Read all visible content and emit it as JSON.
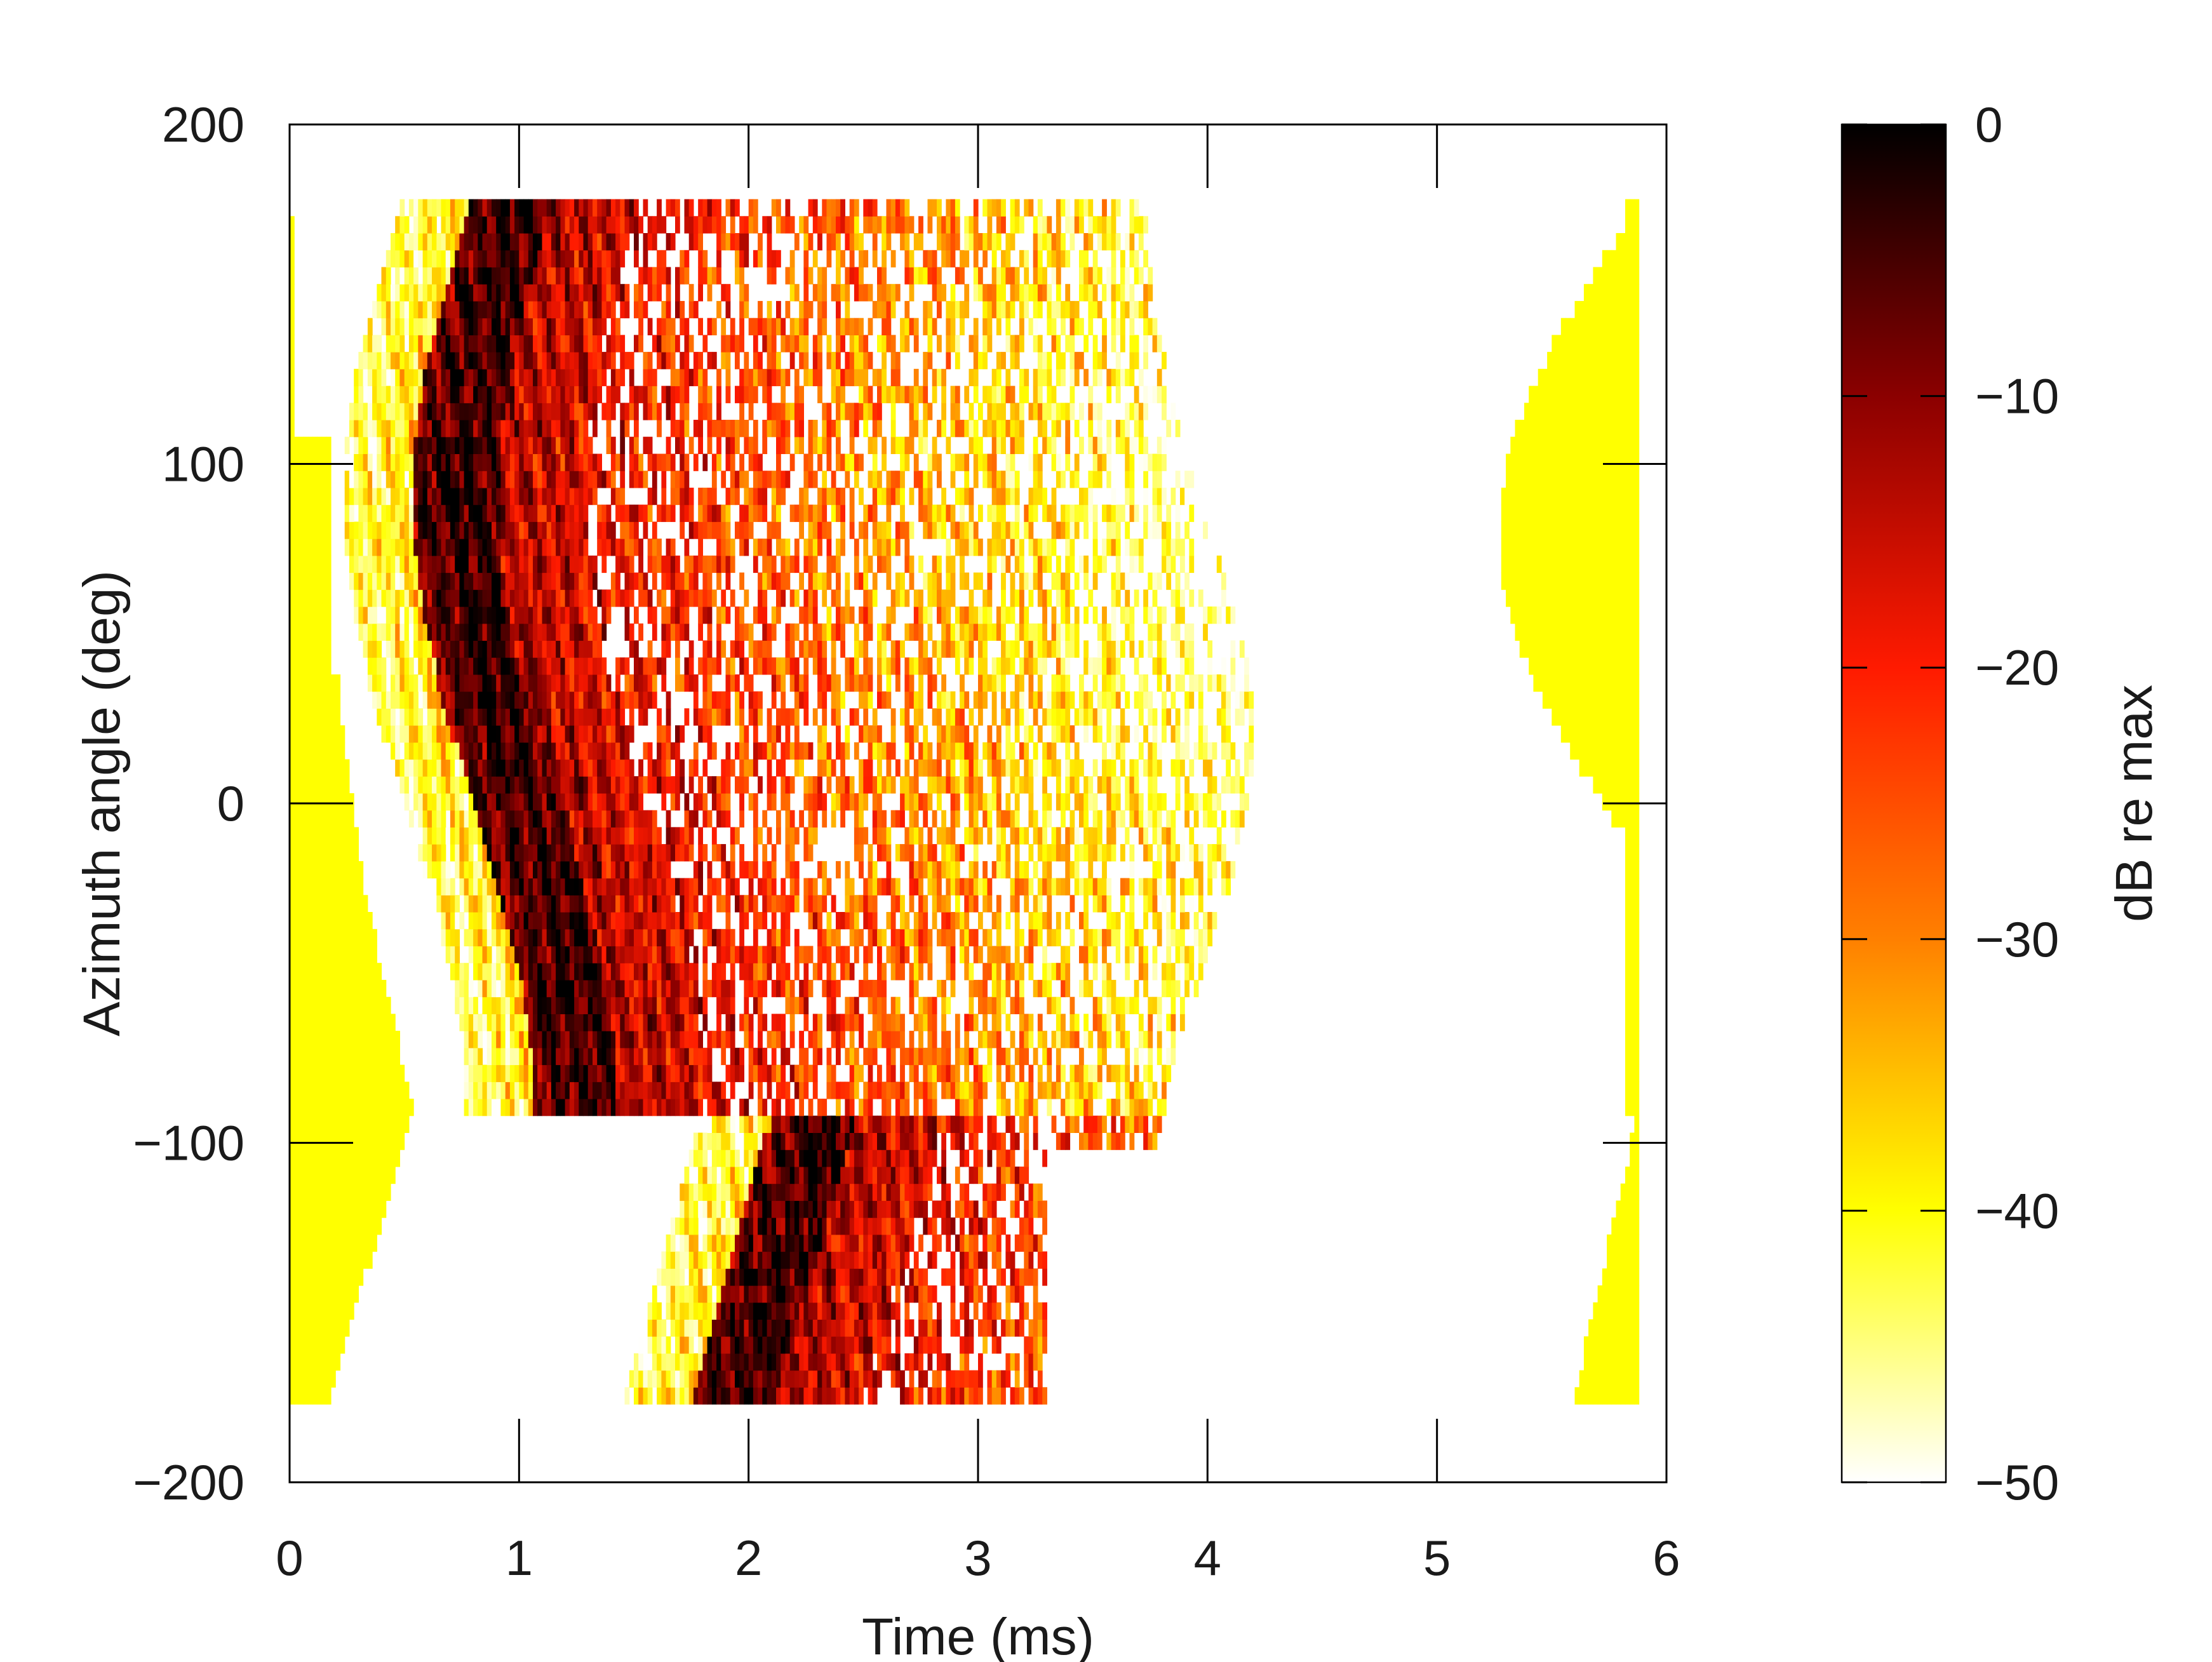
{
  "chart_data": {
    "type": "heatmap",
    "title": "",
    "xlabel": "Time (ms)",
    "ylabel": "Azimuth angle (deg)",
    "xlim": [
      0,
      6
    ],
    "ylim": [
      -200,
      200
    ],
    "xticks": [
      0,
      1,
      2,
      3,
      4,
      5,
      6
    ],
    "yticks": [
      -200,
      -100,
      0,
      100,
      200
    ],
    "xtick_labels": [
      "0",
      "1",
      "2",
      "3",
      "4",
      "5",
      "6"
    ],
    "ytick_labels": [
      "−200",
      "−100",
      "0",
      "100",
      "200"
    ],
    "data_extent": {
      "azimuth_range_deg": [
        -177,
        177
      ],
      "time_range_ms": [
        0,
        5.88
      ],
      "time_bin_ms": 0.02,
      "azimuth_bin_deg": 5
    },
    "colorbar": {
      "label": "dB re max",
      "range": [
        -50,
        0
      ],
      "ticks": [
        0,
        -10,
        -20,
        -30,
        -40,
        -50
      ],
      "tick_labels": [
        "0",
        "−10",
        "−20",
        "−30",
        "−40",
        "−50"
      ],
      "colors": [
        "#000000",
        "#8b0000",
        "#ff1a00",
        "#ff8000",
        "#ffff00",
        "#ffffff"
      ]
    },
    "features": [
      {
        "name": "direct-arrival",
        "description": "strong path near 1 ms, curving from ~0.8 ms at +90 deg to ~1.35 ms at -90 deg",
        "level_db": [
          -5,
          0
        ]
      },
      {
        "name": "reflections",
        "description": "weaker arrivals between 1 ms and 4.2 ms",
        "level_db": [
          -40,
          -15
        ]
      },
      {
        "name": "edge-band-left",
        "description": "uniform band near 0 ms, widest at -90 deg",
        "level_db": -40
      },
      {
        "name": "edge-band-right",
        "description": "uniform band near 5.5-5.9 ms, widest at +90 deg",
        "level_db": -40
      }
    ]
  }
}
